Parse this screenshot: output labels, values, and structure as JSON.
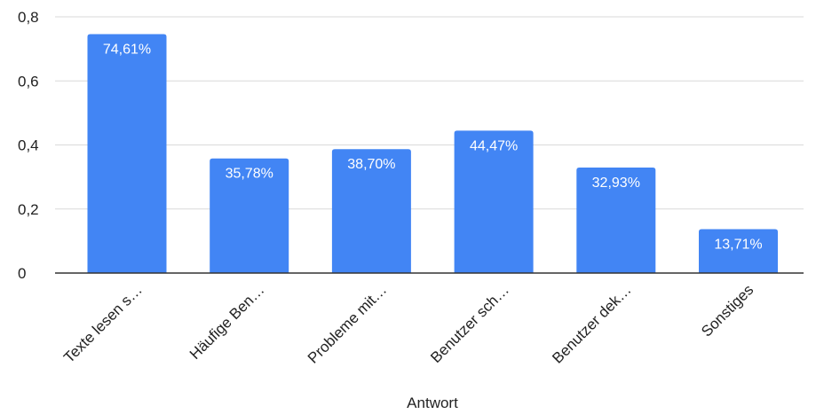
{
  "chart_data": {
    "type": "bar",
    "title": "",
    "xlabel": "Antwort",
    "ylabel": "",
    "categories": [
      "Texte lesen s…",
      "Häufige Ben…",
      "Probleme mit…",
      "Benutzer sch…",
      "Benutzer dek…",
      "Sonstiges"
    ],
    "values": [
      0.7461,
      0.3578,
      0.387,
      0.4447,
      0.3293,
      0.1371
    ],
    "data_labels": [
      "74,61%",
      "35,78%",
      "38,70%",
      "44,47%",
      "32,93%",
      "13,71%"
    ],
    "ylim": [
      0,
      0.8
    ],
    "yticks": [
      0,
      0.2,
      0.4,
      0.6,
      0.8
    ],
    "ytick_labels": [
      "0",
      "0,2",
      "0,4",
      "0,6",
      "0,8"
    ],
    "grid": true,
    "legend": "none",
    "colors": {
      "bar": "#4285f4",
      "grid": "#d9d9d9",
      "axis": "#333333",
      "text": "#222222",
      "data_label": "#ffffff"
    }
  }
}
